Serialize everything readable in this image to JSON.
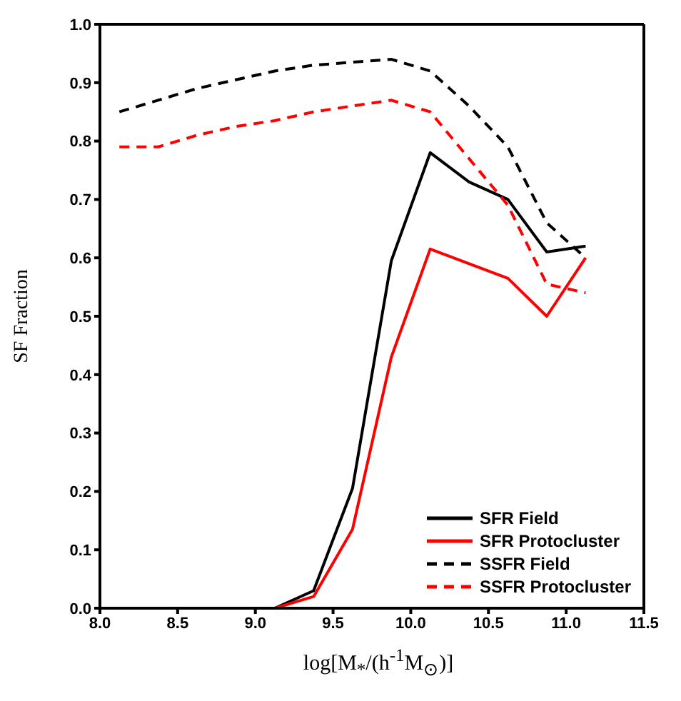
{
  "chart_data": {
    "type": "line",
    "xlabel": "log[M$_{*}$/(h$^{-1}$M$_{⊙}$)]",
    "ylabel": "SF Fraction",
    "x": [
      8.125,
      8.375,
      8.625,
      8.875,
      9.125,
      9.375,
      9.625,
      9.875,
      10.125,
      10.375,
      10.625,
      10.875,
      11.125
    ],
    "series": [
      {
        "name": "SFR Field",
        "color": "#000000",
        "line_style": "solid",
        "values": [
          0,
          0,
          0,
          0,
          0,
          0.03,
          0.205,
          0.595,
          0.78,
          0.73,
          0.7,
          0.61,
          0.62
        ]
      },
      {
        "name": "SFR Protocluster",
        "color": "#ff0000",
        "line_style": "solid",
        "values": [
          null,
          null,
          null,
          null,
          0,
          0.02,
          0.135,
          0.43,
          0.615,
          0.59,
          0.565,
          0.5,
          0.6
        ]
      },
      {
        "name": "SSFR Field",
        "color": "#000000",
        "line_style": "dashed",
        "values": [
          0.85,
          0.87,
          0.89,
          0.905,
          0.92,
          0.93,
          0.935,
          0.94,
          0.92,
          0.86,
          0.79,
          0.66,
          0.6
        ]
      },
      {
        "name": "SSFR Protocluster",
        "color": "#ff0000",
        "line_style": "dashed",
        "values": [
          0.79,
          0.79,
          0.81,
          0.825,
          0.835,
          0.85,
          0.86,
          0.87,
          0.85,
          0.77,
          0.69,
          0.555,
          0.54
        ]
      }
    ],
    "xlim": [
      8.0,
      11.5
    ],
    "xticks": [
      {
        "value": 8.0,
        "label": "8.0"
      },
      {
        "value": 8.5,
        "label": "8.5"
      },
      {
        "value": 9.0,
        "label": "9.0"
      },
      {
        "value": 9.5,
        "label": "9.5"
      },
      {
        "value": 10.0,
        "label": "10.0"
      },
      {
        "value": 10.5,
        "label": "10.5"
      },
      {
        "value": 11.0,
        "label": "11.0"
      },
      {
        "value": 11.5,
        "label": "11.5"
      }
    ],
    "ylim": [
      0,
      1
    ],
    "yticks": [
      {
        "value": 0,
        "label": "0.0"
      },
      {
        "value": 0.1,
        "label": "0.1"
      },
      {
        "value": 0.2,
        "label": "0.2"
      },
      {
        "value": 0.3,
        "label": "0.3"
      },
      {
        "value": 0.4,
        "label": "0.4"
      },
      {
        "value": 0.5,
        "label": "0.5"
      },
      {
        "value": 0.6,
        "label": "0.6"
      },
      {
        "value": 0.7,
        "label": "0.7"
      },
      {
        "value": 0.8,
        "label": "0.8"
      },
      {
        "value": 0.9,
        "label": "0.9"
      },
      {
        "value": 1,
        "label": "1.0"
      }
    ],
    "grid": false,
    "legend": "bottom right",
    "marker": "none"
  }
}
